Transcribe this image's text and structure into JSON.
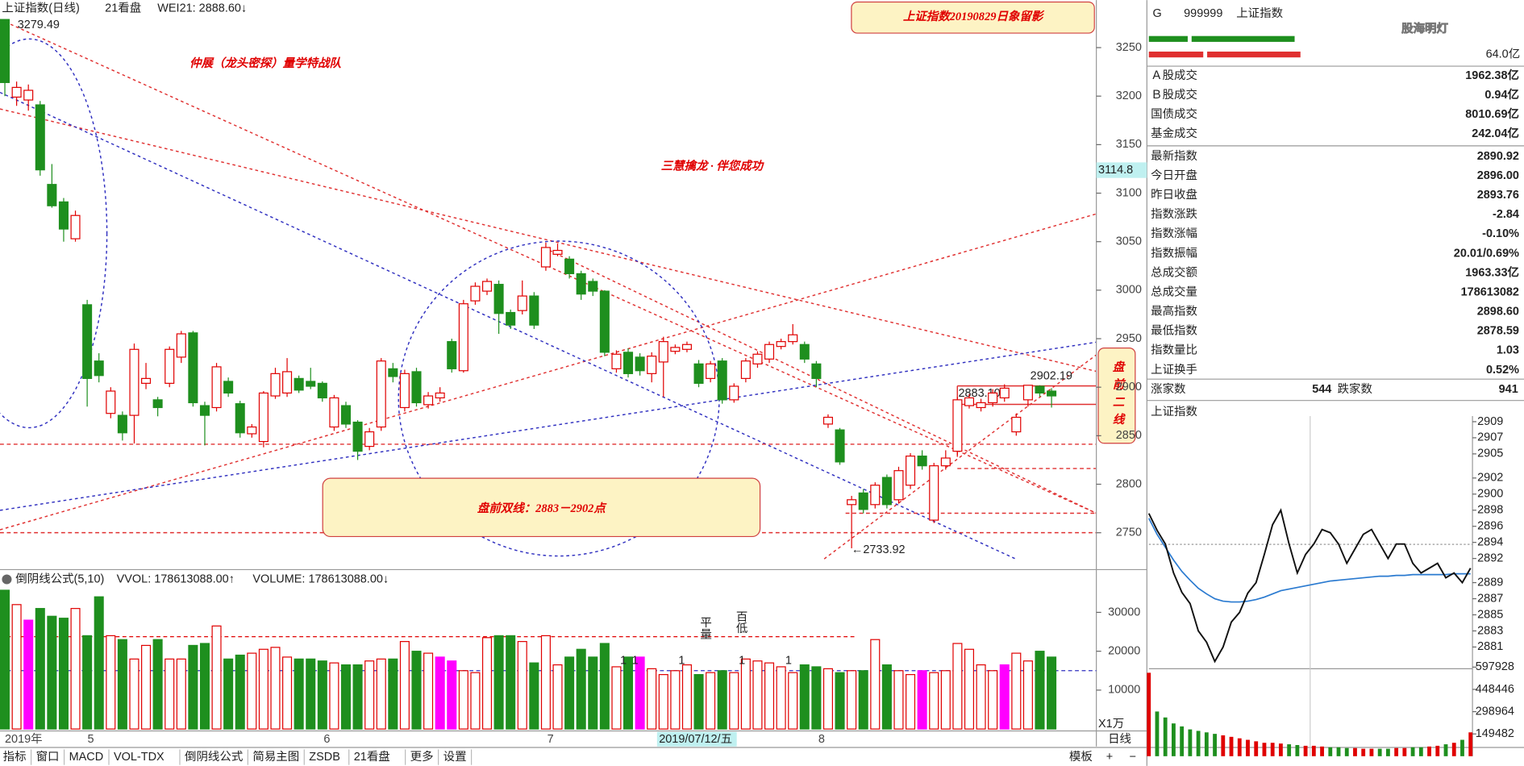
{
  "header": {
    "title": "上证指数(日线)",
    "view": "21看盘",
    "wei": "WEI21: 2888.60↓",
    "high_label": "3279.49"
  },
  "banner": "上证指数20190829日象留影",
  "slogan1": "仲展（龙头密探）量学特战队",
  "slogan2": "三慧擒龙 · 伴您成功",
  "box": "盘前双线：2883－2902点",
  "side_box": "盘前二线",
  "annotations": [
    "2902.19",
    "2883.10",
    "←2733.92"
  ],
  "price": {
    "ylim": [
      2713,
      3299
    ],
    "ticks": [
      3250,
      3200,
      3150,
      3100,
      3050,
      3000,
      2950,
      2900,
      2850,
      2800,
      2750
    ],
    "current_label": "3114.8"
  },
  "candles": [
    [
      3279,
      3214,
      3279,
      3200
    ],
    [
      3199,
      3209,
      3215,
      3190
    ],
    [
      3196,
      3206,
      3212,
      3185
    ],
    [
      3191,
      3124,
      3195,
      3118
    ],
    [
      3109,
      3087,
      3130,
      3085
    ],
    [
      3091,
      3063,
      3095,
      3050
    ],
    [
      3053,
      3077,
      3082,
      3050
    ],
    [
      2985,
      2909,
      2990,
      2880
    ],
    [
      2927,
      2912,
      2935,
      2905
    ],
    [
      2873,
      2896,
      2900,
      2868
    ],
    [
      2871,
      2853,
      2875,
      2845
    ],
    [
      2871,
      2939,
      2945,
      2842
    ],
    [
      2904,
      2909,
      2925,
      2898
    ],
    [
      2887,
      2879,
      2890,
      2870
    ],
    [
      2904,
      2939,
      2942,
      2900
    ],
    [
      2931,
      2955,
      2958,
      2925
    ],
    [
      2956,
      2884,
      2958,
      2880
    ],
    [
      2881,
      2871,
      2885,
      2840
    ],
    [
      2879,
      2921,
      2925,
      2875
    ],
    [
      2906,
      2894,
      2910,
      2890
    ],
    [
      2883,
      2853,
      2886,
      2848
    ],
    [
      2852,
      2859,
      2862,
      2848
    ],
    [
      2844,
      2894,
      2896,
      2838
    ],
    [
      2891,
      2914,
      2920,
      2888
    ],
    [
      2894,
      2916,
      2930,
      2890
    ],
    [
      2909,
      2897,
      2912,
      2894
    ],
    [
      2906,
      2901,
      2920,
      2898
    ],
    [
      2904,
      2889,
      2906,
      2885
    ],
    [
      2859,
      2889,
      2892,
      2855
    ],
    [
      2881,
      2862,
      2885,
      2858
    ],
    [
      2864,
      2834,
      2866,
      2825
    ],
    [
      2839,
      2854,
      2858,
      2835
    ],
    [
      2859,
      2927,
      2930,
      2855
    ],
    [
      2919,
      2911,
      2925,
      2905
    ],
    [
      2879,
      2914,
      2918,
      2875
    ],
    [
      2916,
      2884,
      2920,
      2880
    ],
    [
      2882,
      2891,
      2895,
      2878
    ],
    [
      2889,
      2894,
      2900,
      2885
    ],
    [
      2947,
      2919,
      2950,
      2915
    ],
    [
      2917,
      2986,
      2990,
      2915
    ],
    [
      2989,
      3004,
      3008,
      2985
    ],
    [
      2999,
      3009,
      3012,
      2995
    ],
    [
      3006,
      2976,
      3010,
      2955
    ],
    [
      2977,
      2964,
      2980,
      2960
    ],
    [
      2979,
      2994,
      3010,
      2975
    ],
    [
      2994,
      2964,
      2998,
      2960
    ],
    [
      3024,
      3044,
      3049,
      3020
    ],
    [
      3037,
      3041,
      3048,
      3035
    ],
    [
      3032,
      3017,
      3035,
      3012
    ],
    [
      3017,
      2996,
      3020,
      2990
    ],
    [
      3009,
      2999,
      3012,
      2994
    ],
    [
      2999,
      2936,
      3000,
      2932
    ],
    [
      2919,
      2934,
      2938,
      2915
    ],
    [
      2936,
      2914,
      2940,
      2910
    ],
    [
      2931,
      2917,
      2935,
      2912
    ],
    [
      2914,
      2932,
      2936,
      2905
    ],
    [
      2926,
      2947,
      2952,
      2890
    ],
    [
      2937,
      2941,
      2944,
      2934
    ],
    [
      2939,
      2944,
      2947,
      2936
    ],
    [
      2924,
      2904,
      2928,
      2900
    ],
    [
      2909,
      2924,
      2927,
      2905
    ],
    [
      2927,
      2887,
      2930,
      2883
    ],
    [
      2887,
      2901,
      2904,
      2884
    ],
    [
      2909,
      2927,
      2930,
      2905
    ],
    [
      2924,
      2934,
      2937,
      2920
    ],
    [
      2929,
      2944,
      2947,
      2925
    ],
    [
      2942,
      2947,
      2950,
      2939
    ],
    [
      2947,
      2954,
      2965,
      2944
    ],
    [
      2944,
      2929,
      2947,
      2925
    ],
    [
      2924,
      2909,
      2927,
      2900
    ],
    [
      2862,
      2869,
      2872,
      2858
    ],
    [
      2856,
      2823,
      2858,
      2820
    ],
    [
      2779,
      2784,
      2788,
      2734
    ],
    [
      2791,
      2774,
      2795,
      2770
    ],
    [
      2779,
      2799,
      2802,
      2775
    ],
    [
      2807,
      2779,
      2810,
      2775
    ],
    [
      2784,
      2814,
      2818,
      2780
    ],
    [
      2799,
      2829,
      2832,
      2795
    ],
    [
      2829,
      2819,
      2835,
      2815
    ],
    [
      2763,
      2819,
      2822,
      2760
    ],
    [
      2819,
      2827,
      2835,
      2815
    ],
    [
      2834,
      2887,
      2890,
      2830
    ],
    [
      2881,
      2889,
      2893,
      2878
    ],
    [
      2879,
      2884,
      2888,
      2875
    ],
    [
      2884,
      2894,
      2898,
      2880
    ],
    [
      2889,
      2899,
      2903,
      2885
    ],
    [
      2854,
      2869,
      2873,
      2850
    ],
    [
      2887,
      2902,
      2902,
      2880
    ],
    [
      2901,
      2894,
      2902,
      2890
    ],
    [
      2896,
      2891,
      2899,
      2879
    ]
  ],
  "volume": {
    "header": [
      "倒阴线公式(5,10)",
      "VVOL: 178613088.00↑",
      "VOLUME: 178613088.00↓"
    ],
    "ylim": [
      0,
      40500
    ],
    "ticks": [
      30000,
      20000,
      10000
    ],
    "unit": "X1万",
    "values": [
      35700,
      32000,
      28000,
      31000,
      29000,
      28500,
      31000,
      24000,
      34000,
      24000,
      23000,
      18000,
      21500,
      23000,
      18000,
      18000,
      21500,
      22000,
      26500,
      18000,
      19000,
      19500,
      20500,
      21000,
      18500,
      18000,
      18000,
      17500,
      17000,
      16500,
      16500,
      17500,
      18000,
      18000,
      22500,
      20000,
      19500,
      18500,
      17500,
      15000,
      14500,
      23500,
      24000,
      24000,
      22500,
      17000,
      24000,
      16500,
      18500,
      20500,
      18500,
      22000,
      16000,
      18500,
      18500,
      15500,
      14000,
      15000,
      16500,
      14000,
      14500,
      15000,
      14500,
      18000,
      17500,
      17000,
      16000,
      14500,
      16500,
      16000,
      15500,
      14500,
      15000,
      15000,
      23000,
      16500,
      15000,
      14000,
      15000,
      14500,
      15000,
      22000,
      20500,
      16500,
      15000,
      16500,
      19500,
      17500,
      20000,
      18500
    ],
    "highlight": [
      2,
      37,
      38,
      54,
      78,
      85
    ],
    "notes": [
      "平量",
      "百低",
      "1"
    ]
  },
  "dates": {
    "labels": [
      "2019年",
      "5",
      "6",
      "7",
      "8"
    ],
    "cursor": "2019/07/12/五",
    "period": "日线"
  },
  "tabs": [
    "指标",
    "窗口",
    "MACD",
    "VOL-TDX",
    "倒阴线公式",
    "简易主图",
    "ZSDB",
    "21看盘",
    "更多",
    "设置"
  ],
  "tabs_right": [
    "模板",
    "+",
    "−"
  ],
  "right": {
    "flag": "G",
    "code": "999999",
    "name": "上证指数",
    "watermark": "股海明灯",
    "top_value": "64.0亿",
    "rows": [
      {
        "label": "Ａ股成交",
        "value": "1962.38亿",
        "color": "#111"
      },
      {
        "label": "Ｂ股成交",
        "value": "0.94亿",
        "color": "#111"
      },
      {
        "label": "国债成交",
        "value": "8010.69亿",
        "color": "#111"
      },
      {
        "label": "基金成交",
        "value": "242.04亿",
        "color": "#111"
      },
      {
        "label": "最新指数",
        "value": "2890.92",
        "color": "#008800"
      },
      {
        "label": "今日开盘",
        "value": "2896.00",
        "color": "#e00000"
      },
      {
        "label": "昨日收盘",
        "value": "2893.76",
        "color": "#111"
      },
      {
        "label": "指数涨跌",
        "value": "-2.84",
        "color": "#008800"
      },
      {
        "label": "指数涨幅",
        "value": "-0.10%",
        "color": "#008800"
      },
      {
        "label": "指数振幅",
        "value": "20.01/0.69%",
        "color": "#111"
      },
      {
        "label": "总成交额",
        "value": "1963.33亿",
        "color": "#111"
      },
      {
        "label": "总成交量",
        "value": "178613082",
        "color": "#111"
      },
      {
        "label": "最高指数",
        "value": "2898.60",
        "color": "#e00000"
      },
      {
        "label": "最低指数",
        "value": "2878.59",
        "color": "#008800"
      },
      {
        "label": "指数量比",
        "value": "1.03",
        "color": "#e00000"
      },
      {
        "label": "上证换手",
        "value": "0.52%",
        "color": "#111"
      }
    ],
    "breadth": {
      "up_label": "涨家数",
      "up": "544",
      "down_label": "跌家数",
      "down": "941"
    },
    "intraday": {
      "title": "上证指数",
      "ylim": [
        2878.3,
        2909.7
      ],
      "ticks": [
        2909,
        2907,
        2905,
        2902,
        2900,
        2898,
        2896,
        2894,
        2892,
        2889,
        2887,
        2885,
        2883,
        2881
      ],
      "price": [
        2897.6,
        2895.5,
        2893.8,
        2890.2,
        2887.8,
        2886.4,
        2883.0,
        2881.6,
        2879.2,
        2881.0,
        2884.1,
        2885.3,
        2887.7,
        2889.0,
        2892.5,
        2896.2,
        2898.0,
        2893.8,
        2890.2,
        2892.5,
        2893.8,
        2895.6,
        2895.2,
        2893.8,
        2891.4,
        2893.2,
        2895.0,
        2895.6,
        2893.8,
        2892.0,
        2893.8,
        2893.8,
        2891.4,
        2890.2,
        2890.8,
        2891.4,
        2889.6,
        2890.2,
        2889.0,
        2890.8
      ],
      "average": [
        2897.0,
        2895.0,
        2893.4,
        2891.8,
        2890.4,
        2889.3,
        2888.3,
        2887.6,
        2887.0,
        2886.7,
        2886.6,
        2886.6,
        2886.7,
        2886.9,
        2887.2,
        2887.6,
        2888.0,
        2888.2,
        2888.4,
        2888.6,
        2888.8,
        2889.0,
        2889.2,
        2889.3,
        2889.4,
        2889.5,
        2889.6,
        2889.7,
        2889.8,
        2889.8,
        2889.9,
        2889.9,
        2890.0,
        2890.0,
        2890.0,
        2890.0,
        2890.0,
        2890.1,
        2890.1,
        2890.1
      ],
      "vol_ylim": [
        0,
        600000
      ],
      "vol_ticks": [
        597928,
        448446,
        298964,
        149482
      ],
      "volume": [
        560000,
        300000,
        260000,
        220000,
        200000,
        180000,
        170000,
        160000,
        150000,
        140000,
        130000,
        120000,
        110000,
        100000,
        90000,
        90000,
        85000,
        80000,
        75000,
        70000,
        70000,
        65000,
        60000,
        60000,
        55000,
        55000,
        50000,
        50000,
        50000,
        50000,
        55000,
        55000,
        60000,
        60000,
        65000,
        70000,
        80000,
        90000,
        110000,
        160000
      ]
    }
  }
}
